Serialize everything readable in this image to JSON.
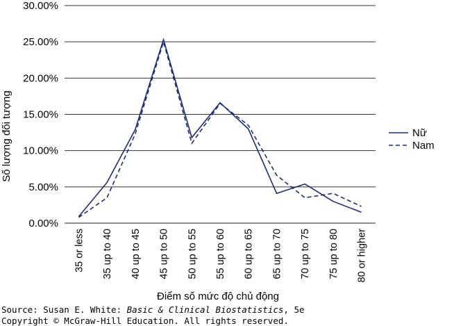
{
  "chart_data": {
    "type": "line",
    "categories": [
      "35 or less",
      "35 up to 40",
      "40 up to 45",
      "45 up to 50",
      "50 up to 55",
      "55 up to 60",
      "60 up to 65",
      "65 up to 70",
      "70 up to 75",
      "75 up to 80",
      "80 or higher"
    ],
    "series": [
      {
        "name": "Nữ",
        "values": [
          0.9,
          5.6,
          12.9,
          25.3,
          11.8,
          16.6,
          13.0,
          4.1,
          5.4,
          3.0,
          1.5
        ],
        "style": "solid",
        "color": "#1a2b7a"
      },
      {
        "name": "Nam",
        "values": [
          0.8,
          3.5,
          12.3,
          25.0,
          11.0,
          16.5,
          13.5,
          6.6,
          3.5,
          4.1,
          2.3
        ],
        "style": "dashed",
        "color": "#1a2b7a"
      }
    ],
    "y_ticks": [
      "0.00%",
      "5.00%",
      "10.00%",
      "15.00%",
      "20.00%",
      "25.00%",
      "30.00%"
    ],
    "ylim": [
      0,
      30
    ],
    "xlabel": "Điểm số mức độ chủ động",
    "ylabel": "Số lượng đối tượng",
    "grid": "horizontal",
    "legend_position": "right"
  },
  "source": {
    "prefix": "Source: Susan E. White: ",
    "book_title": "Basic & Clinical Biostatistics",
    "suffix": ", 5e",
    "copyright": "Copyright © McGraw-Hill Education. All rights reserved."
  }
}
